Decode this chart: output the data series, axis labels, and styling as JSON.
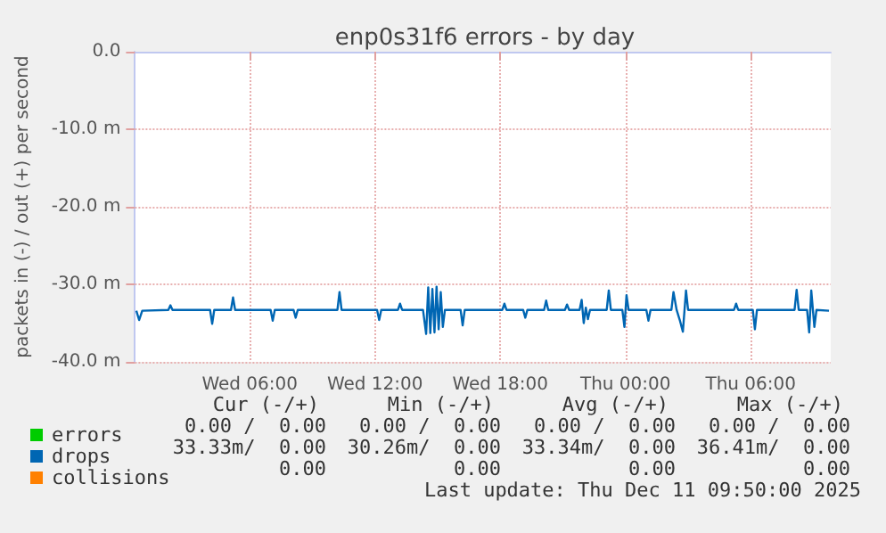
{
  "chart_data": {
    "type": "line",
    "title": "enp0s31f6 errors - by day",
    "ylabel": "packets in (-) / out (+) per second",
    "xlim": [
      "2025-12-10T00:30",
      "2025-12-11T09:50"
    ],
    "xticks": [
      {
        "value": "2025-12-10T06:00",
        "label": "Wed 06:00"
      },
      {
        "value": "2025-12-10T12:00",
        "label": "Wed 12:00"
      },
      {
        "value": "2025-12-10T18:00",
        "label": "Wed 18:00"
      },
      {
        "value": "2025-12-11T00:00",
        "label": "Thu 00:00"
      },
      {
        "value": "2025-12-11T06:00",
        "label": "Thu 06:00"
      }
    ],
    "ylim": [
      -40,
      0
    ],
    "yticks": [
      {
        "value": -40,
        "label": "-40.0 m"
      },
      {
        "value": -30,
        "label": "-30.0 m"
      },
      {
        "value": -20,
        "label": "-20.0 m"
      },
      {
        "value": -10,
        "label": "-10.0 m"
      },
      {
        "value": 0,
        "label": "0.0"
      }
    ],
    "grid": true,
    "legend": "bottom left",
    "marker": "none",
    "line_style": "solid",
    "series": [
      {
        "name": "errors",
        "color": "#00cc00"
      },
      {
        "name": "drops",
        "color": "#0066b3",
        "x": [
          "2025-12-10T00:34",
          "2025-12-10T00:42",
          "2025-12-10T00:51",
          "2025-12-10T02:06",
          "2025-12-10T02:12",
          "2025-12-10T02:18",
          "2025-12-10T04:06",
          "2025-12-10T04:12",
          "2025-12-10T04:18",
          "2025-12-10T05:06",
          "2025-12-10T05:12",
          "2025-12-10T05:18",
          "2025-12-10T07:00",
          "2025-12-10T07:06",
          "2025-12-10T07:12",
          "2025-12-10T08:06",
          "2025-12-10T08:12",
          "2025-12-10T08:18",
          "2025-12-10T10:12",
          "2025-12-10T10:18",
          "2025-12-10T10:24",
          "2025-12-10T12:06",
          "2025-12-10T12:12",
          "2025-12-10T12:18",
          "2025-12-10T13:06",
          "2025-12-10T13:12",
          "2025-12-10T13:18",
          "2025-12-10T14:18",
          "2025-12-10T14:27",
          "2025-12-10T14:33",
          "2025-12-10T14:39",
          "2025-12-10T14:45",
          "2025-12-10T14:51",
          "2025-12-10T14:57",
          "2025-12-10T15:03",
          "2025-12-10T15:09",
          "2025-12-10T15:15",
          "2025-12-10T15:21",
          "2025-12-10T16:06",
          "2025-12-10T16:12",
          "2025-12-10T16:18",
          "2025-12-10T18:06",
          "2025-12-10T18:12",
          "2025-12-10T18:18",
          "2025-12-10T19:06",
          "2025-12-10T19:12",
          "2025-12-10T19:18",
          "2025-12-10T20:06",
          "2025-12-10T20:12",
          "2025-12-10T20:18",
          "2025-12-10T21:06",
          "2025-12-10T21:12",
          "2025-12-10T21:18",
          "2025-12-10T21:48",
          "2025-12-10T21:54",
          "2025-12-10T22:00",
          "2025-12-10T22:06",
          "2025-12-10T22:12",
          "2025-12-10T22:18",
          "2025-12-10T23:06",
          "2025-12-10T23:12",
          "2025-12-10T23:18",
          "2025-12-10T23:51",
          "2025-12-10T23:57",
          "2025-12-11T00:03",
          "2025-12-11T00:09",
          "2025-12-11T01:00",
          "2025-12-11T01:06",
          "2025-12-11T01:12",
          "2025-12-11T02:12",
          "2025-12-11T02:18",
          "2025-12-11T02:27",
          "2025-12-11T02:36",
          "2025-12-11T02:45",
          "2025-12-11T02:54",
          "2025-12-11T03:00",
          "2025-12-11T03:06",
          "2025-12-11T05:12",
          "2025-12-11T05:18",
          "2025-12-11T05:24",
          "2025-12-11T06:06",
          "2025-12-11T06:12",
          "2025-12-11T06:18",
          "2025-12-11T08:06",
          "2025-12-11T08:12",
          "2025-12-11T08:18",
          "2025-12-11T08:42",
          "2025-12-11T08:48",
          "2025-12-11T08:54",
          "2025-12-11T09:03",
          "2025-12-11T09:09",
          "2025-12-11T09:45"
        ],
        "values": [
          -33.4,
          -34.6,
          -33.4,
          -33.3,
          -32.7,
          -33.3,
          -33.3,
          -35.1,
          -33.3,
          -33.3,
          -31.7,
          -33.3,
          -33.3,
          -34.7,
          -33.3,
          -33.3,
          -34.3,
          -33.3,
          -33.3,
          -31.0,
          -33.3,
          -33.3,
          -34.6,
          -33.3,
          -33.3,
          -32.5,
          -33.3,
          -33.3,
          -36.4,
          -30.4,
          -36.3,
          -30.6,
          -36.2,
          -30.3,
          -35.8,
          -31.0,
          -35.5,
          -33.3,
          -33.3,
          -35.3,
          -33.3,
          -33.3,
          -32.5,
          -33.3,
          -33.3,
          -34.3,
          -33.3,
          -33.3,
          -32.1,
          -33.3,
          -33.3,
          -32.6,
          -33.3,
          -33.3,
          -32.0,
          -35.0,
          -33.0,
          -34.5,
          -33.3,
          -33.3,
          -30.8,
          -33.3,
          -33.3,
          -35.5,
          -31.4,
          -33.3,
          -33.3,
          -34.7,
          -33.3,
          -33.3,
          -31.0,
          -33.3,
          -34.6,
          -36.1,
          -30.8,
          -33.3,
          -33.3,
          -33.3,
          -32.5,
          -33.3,
          -33.3,
          -35.8,
          -33.3,
          -33.3,
          -30.7,
          -33.3,
          -33.3,
          -36.2,
          -30.8,
          -35.5,
          -33.3,
          -33.4
        ]
      },
      {
        "name": "collisions",
        "color": "#ff8000"
      }
    ],
    "annotations": [
      "Cur (-/+)",
      "Min (-/+)",
      "Avg (-/+)",
      "Max (-/+)",
      "0.00 /  0.00",
      "0.00 /  0.00",
      "0.00 /  0.00",
      "0.00 /  0.00",
      "33.33m/  0.00",
      "30.26m/  0.00",
      "33.34m/  0.00",
      "36.41m/  0.00",
      "0.00",
      "0.00",
      "0.00",
      "0.00",
      "Last update: Thu Dec 11 09:50:00 2025"
    ]
  }
}
